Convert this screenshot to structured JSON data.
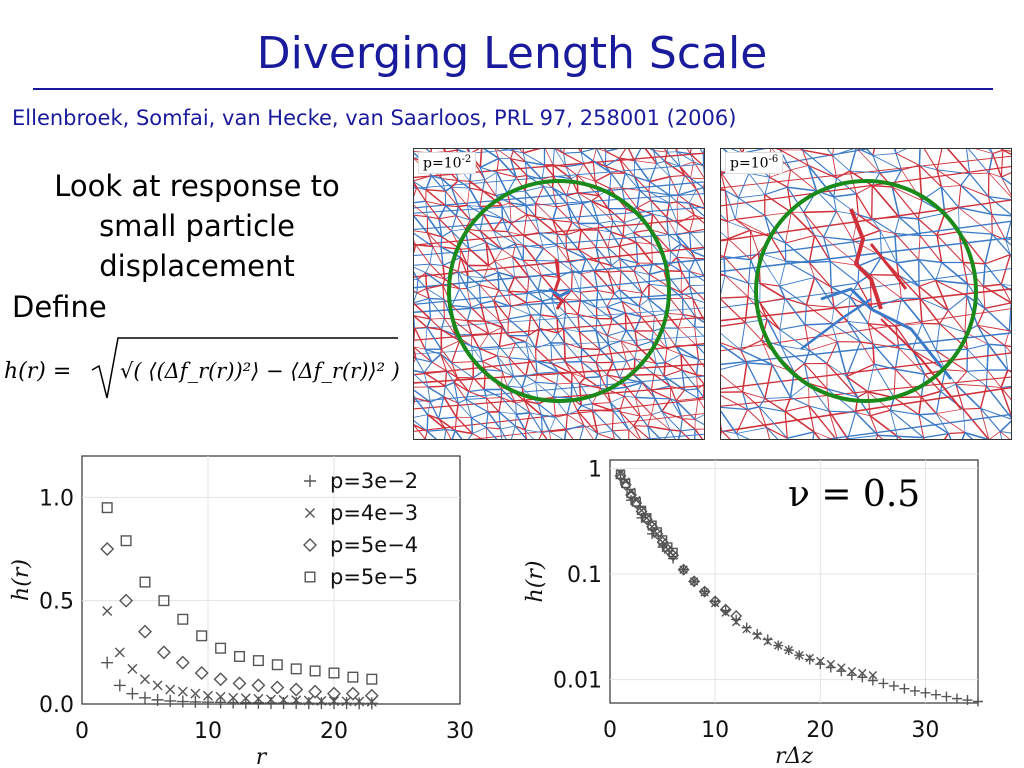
{
  "title": "Diverging Length Scale",
  "citation": "Ellenbroek, Somfai, van Hecke, van Saarloos, PRL 97, 258001 (2006)",
  "intro_text": "Look at response to small particle displacement",
  "define_label": "Define",
  "formula": {
    "lhs": "h(r) =",
    "rhs": "√( ⟨(Δf_r(r))²⟩ − ⟨Δf_r(r)⟩² )"
  },
  "panels": [
    {
      "label_base": "p=10",
      "label_exp": "-2",
      "colors": {
        "network_a": "#d0303a",
        "network_b": "#3a7ac8",
        "circle": "#1a8a1a"
      }
    },
    {
      "label_base": "p=10",
      "label_exp": "-6",
      "colors": {
        "network_a": "#d0303a",
        "network_b": "#3a7ac8",
        "circle": "#1a8a1a"
      }
    }
  ],
  "chart_data": [
    {
      "type": "scatter",
      "xlabel": "r",
      "ylabel": "h(r)",
      "xlim": [
        0,
        30
      ],
      "ylim": [
        0,
        1.2
      ],
      "xticks": [
        "0",
        "10",
        "20",
        "30"
      ],
      "yticks": [
        "0.0",
        "0.5",
        "1.0"
      ],
      "legend_position": "top-right",
      "series": [
        {
          "name": "p=3e−2",
          "marker": "plus",
          "x": [
            2,
            3,
            4,
            5,
            6,
            7,
            8,
            9,
            10,
            11,
            12,
            13,
            14,
            15,
            16,
            17,
            18,
            19,
            20,
            21,
            22,
            23
          ],
          "y": [
            0.2,
            0.09,
            0.05,
            0.03,
            0.02,
            0.015,
            0.012,
            0.01,
            0.009,
            0.008,
            0.007,
            0.006,
            0.006,
            0.005,
            0.005,
            0.005,
            0.004,
            0.004,
            0.004,
            0.004,
            0.003,
            0.003
          ]
        },
        {
          "name": "p=4e−3",
          "marker": "cross",
          "x": [
            2,
            3,
            4,
            5,
            6,
            7,
            8,
            9,
            10,
            11,
            12,
            13,
            14,
            15,
            16,
            17,
            18,
            19,
            20,
            21,
            22,
            23
          ],
          "y": [
            0.45,
            0.25,
            0.17,
            0.12,
            0.09,
            0.07,
            0.06,
            0.05,
            0.04,
            0.035,
            0.03,
            0.028,
            0.025,
            0.022,
            0.02,
            0.018,
            0.017,
            0.015,
            0.014,
            0.013,
            0.012,
            0.011
          ]
        },
        {
          "name": "p=5e−4",
          "marker": "diamond",
          "x": [
            2,
            3.5,
            5,
            6.5,
            8,
            9.5,
            11,
            12.5,
            14,
            15.5,
            17,
            18.5,
            20,
            21.5,
            23
          ],
          "y": [
            0.75,
            0.5,
            0.35,
            0.25,
            0.2,
            0.15,
            0.12,
            0.1,
            0.09,
            0.08,
            0.07,
            0.06,
            0.05,
            0.05,
            0.04
          ]
        },
        {
          "name": "p=5e−5",
          "marker": "square",
          "x": [
            2,
            3.5,
            5,
            6.5,
            8,
            9.5,
            11,
            12.5,
            14,
            15.5,
            17,
            18.5,
            20,
            21.5,
            23
          ],
          "y": [
            0.95,
            0.79,
            0.59,
            0.5,
            0.41,
            0.33,
            0.27,
            0.23,
            0.21,
            0.19,
            0.17,
            0.16,
            0.15,
            0.13,
            0.12
          ]
        }
      ]
    },
    {
      "type": "scatter",
      "xlabel": "rΔz",
      "ylabel": "h(r)",
      "xlim": [
        0,
        35
      ],
      "ylim": [
        0.006,
        1.2
      ],
      "yscale": "log",
      "xticks": [
        "0",
        "10",
        "20",
        "30"
      ],
      "yticks": [
        "1",
        "0.1",
        "0.01"
      ],
      "annotation": "ν = 0.5",
      "series": [
        {
          "marker": "cross",
          "x": [
            1,
            1.5,
            2,
            2.5,
            3,
            3.5,
            4,
            4.5,
            5,
            5.5,
            6,
            7,
            8,
            9,
            10,
            11,
            12,
            13,
            14,
            15,
            16,
            17,
            18,
            19,
            20,
            21,
            22,
            23,
            24,
            25
          ],
          "y": [
            0.9,
            0.75,
            0.6,
            0.5,
            0.4,
            0.34,
            0.28,
            0.24,
            0.2,
            0.17,
            0.15,
            0.11,
            0.085,
            0.067,
            0.053,
            0.043,
            0.035,
            0.03,
            0.026,
            0.023,
            0.021,
            0.019,
            0.017,
            0.016,
            0.015,
            0.014,
            0.013,
            0.012,
            0.0115,
            0.011
          ]
        },
        {
          "marker": "diamond",
          "x": [
            1,
            1.5,
            2,
            2.5,
            3,
            3.5,
            4,
            4.5,
            5,
            5.5,
            6,
            7,
            8,
            9,
            10,
            11,
            12
          ],
          "y": [
            0.85,
            0.7,
            0.56,
            0.47,
            0.39,
            0.33,
            0.28,
            0.24,
            0.2,
            0.17,
            0.15,
            0.11,
            0.085,
            0.068,
            0.055,
            0.046,
            0.04
          ]
        },
        {
          "marker": "square",
          "x": [
            1,
            1.5,
            2,
            2.5,
            3,
            3.5,
            4,
            4.5,
            5,
            5.5,
            6
          ],
          "y": [
            0.88,
            0.72,
            0.58,
            0.48,
            0.4,
            0.34,
            0.29,
            0.25,
            0.21,
            0.18,
            0.16
          ]
        },
        {
          "marker": "plus",
          "x": [
            1,
            2,
            3,
            4,
            5,
            6,
            7,
            8,
            9,
            10,
            11,
            12,
            13,
            14,
            15,
            16,
            17,
            18,
            19,
            20,
            21,
            22,
            23,
            24,
            25,
            26,
            27,
            28,
            29,
            30,
            31,
            32,
            33,
            34,
            35
          ],
          "y": [
            0.8,
            0.5,
            0.34,
            0.24,
            0.18,
            0.14,
            0.11,
            0.085,
            0.068,
            0.055,
            0.045,
            0.037,
            0.031,
            0.027,
            0.024,
            0.021,
            0.019,
            0.017,
            0.0155,
            0.014,
            0.013,
            0.012,
            0.011,
            0.0105,
            0.0098,
            0.0092,
            0.0087,
            0.0082,
            0.0078,
            0.0075,
            0.0072,
            0.0069,
            0.0066,
            0.0064,
            0.0062
          ]
        }
      ]
    }
  ]
}
